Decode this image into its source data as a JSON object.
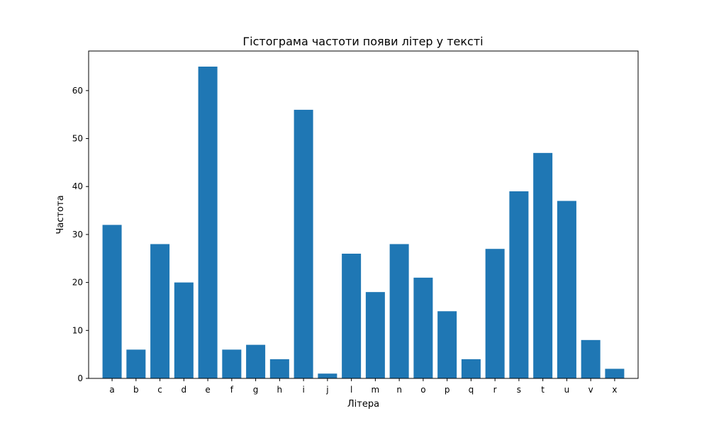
{
  "chart_data": {
    "type": "bar",
    "title": "Гістограма частоти появи літер у тексті",
    "xlabel": "Літера",
    "ylabel": "Частота",
    "categories": [
      "a",
      "b",
      "c",
      "d",
      "e",
      "f",
      "g",
      "h",
      "i",
      "j",
      "l",
      "m",
      "n",
      "o",
      "p",
      "q",
      "r",
      "s",
      "t",
      "u",
      "v",
      "x"
    ],
    "values": [
      32,
      6,
      28,
      20,
      65,
      6,
      7,
      4,
      56,
      1,
      26,
      18,
      28,
      21,
      14,
      4,
      27,
      39,
      47,
      37,
      8,
      2
    ],
    "ylim": [
      0,
      68.25
    ],
    "yticks": [
      0,
      10,
      20,
      30,
      40,
      50,
      60
    ],
    "bar_color": "#1f77b4",
    "grid": false,
    "legend": false
  }
}
